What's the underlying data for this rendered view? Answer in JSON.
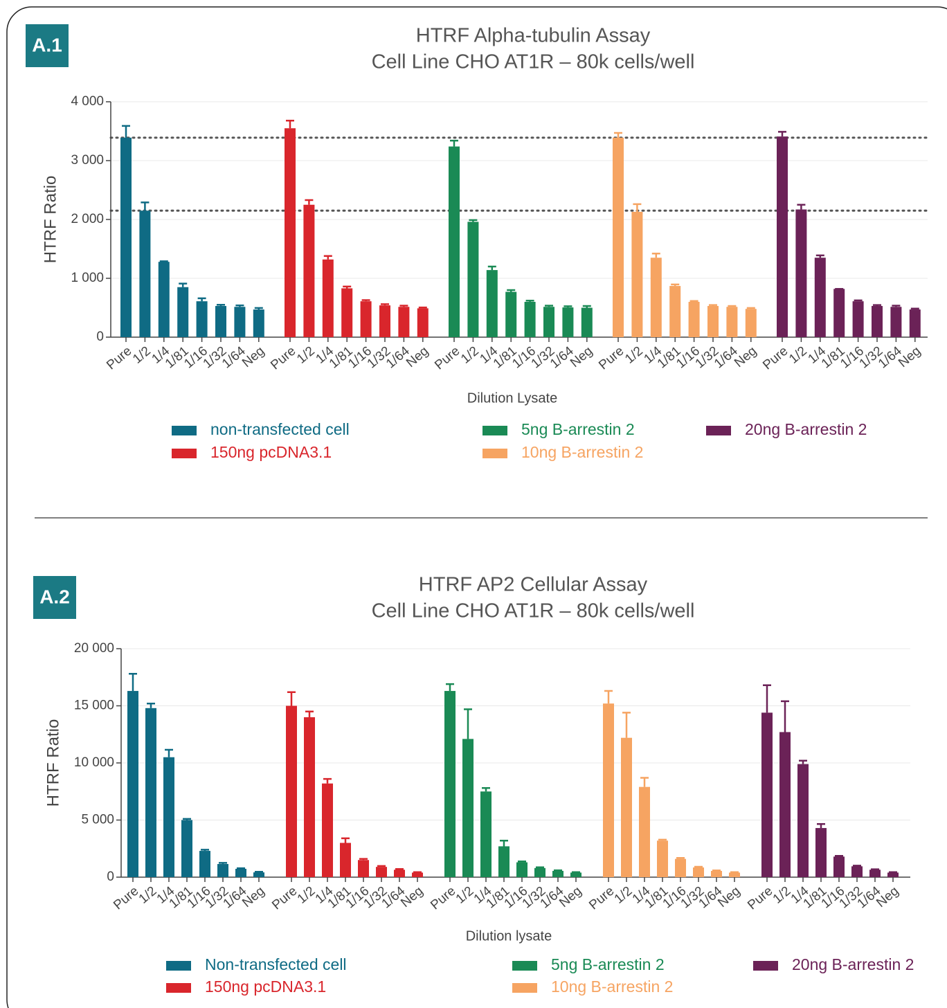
{
  "chart_data": [
    {
      "type": "bar",
      "panel": "A.1",
      "title": "HTRF Alpha-tubulin Assay",
      "subtitle": "Cell Line CHO AT1R – 80k cells/well",
      "ylabel": "HTRF Ratio",
      "xlabel": "Dilution Lysate",
      "categories": [
        "Pure",
        "1/2",
        "1/4",
        "1/81",
        "1/16",
        "1/32",
        "1/64",
        "Neg"
      ],
      "ylim": [
        0,
        4000
      ],
      "yticks": [
        0,
        {
          "value": 1000,
          "label": "1 000"
        },
        {
          "value": 2000,
          "label": "2 000"
        },
        {
          "value": 3000,
          "label": "3 000"
        },
        {
          "value": 4000,
          "label": "4 000"
        }
      ],
      "reference_lines": [
        3390,
        2150
      ],
      "series": [
        {
          "name": "non-transfected cell",
          "color": "#0f6b84",
          "values": [
            3390,
            2150,
            1280,
            850,
            610,
            530,
            515,
            470
          ],
          "errors": [
            200,
            140,
            10,
            60,
            50,
            20,
            25,
            25
          ]
        },
        {
          "name": "150ng pcDNA3.1",
          "color": "#d9262c",
          "values": [
            3550,
            2250,
            1320,
            830,
            610,
            540,
            515,
            490
          ],
          "errors": [
            130,
            80,
            60,
            30,
            20,
            20,
            20,
            15
          ]
        },
        {
          "name": "5ng B-arrestin 2",
          "color": "#1a8a55",
          "values": [
            3240,
            1960,
            1140,
            770,
            600,
            515,
            505,
            500
          ],
          "errors": [
            100,
            30,
            60,
            30,
            20,
            20,
            20,
            30
          ]
        },
        {
          "name": "10ng B-arrestin 2",
          "color": "#f6a462",
          "values": [
            3390,
            2130,
            1350,
            870,
            600,
            530,
            515,
            480
          ],
          "errors": [
            80,
            130,
            70,
            25,
            15,
            15,
            15,
            15
          ]
        },
        {
          "name": "20ng B-arrestin 2",
          "color": "#6b2257",
          "values": [
            3410,
            2170,
            1350,
            820,
            610,
            530,
            515,
            470
          ],
          "errors": [
            80,
            80,
            40,
            0,
            15,
            15,
            20,
            15
          ]
        }
      ]
    },
    {
      "type": "bar",
      "panel": "A.2",
      "title": "HTRF AP2 Cellular Assay",
      "subtitle": "Cell Line CHO AT1R – 80k cells/well",
      "ylabel": "HTRF Ratio",
      "xlabel": "Dilution lysate",
      "categories": [
        "Pure",
        "1/2",
        "1/4",
        "1/81",
        "1/16",
        "1/32",
        "1/64",
        "Neg"
      ],
      "ylim": [
        0,
        20000
      ],
      "yticks": [
        0,
        {
          "value": 5000,
          "label": "5 000"
        },
        {
          "value": 10000,
          "label": "10 000"
        },
        {
          "value": 15000,
          "label": "15 000"
        },
        {
          "value": 20000,
          "label": "20 000"
        }
      ],
      "series": [
        {
          "name": "Non-transfected cell",
          "color": "#0f6b84",
          "values": [
            16300,
            14800,
            10500,
            5000,
            2300,
            1150,
            730,
            420
          ],
          "errors": [
            1500,
            400,
            650,
            100,
            100,
            100,
            50,
            50
          ]
        },
        {
          "name": "150ng pcDNA3.1",
          "color": "#d9262c",
          "values": [
            15000,
            14000,
            8200,
            3000,
            1500,
            900,
            650,
            400
          ],
          "errors": [
            1200,
            500,
            400,
            400,
            100,
            80,
            60,
            40
          ]
        },
        {
          "name": "5ng B-arrestin 2",
          "color": "#1a8a55",
          "values": [
            16300,
            12100,
            7500,
            2700,
            1300,
            800,
            550,
            400
          ],
          "errors": [
            600,
            2600,
            300,
            500,
            80,
            60,
            50,
            40
          ]
        },
        {
          "name": "10ng B-arrestin 2",
          "color": "#f6a462",
          "values": [
            15200,
            12200,
            7900,
            3200,
            1600,
            850,
            550,
            400
          ],
          "errors": [
            1100,
            2200,
            800,
            80,
            80,
            60,
            40,
            40
          ]
        },
        {
          "name": "20ng B-arrestin 2",
          "color": "#6b2257",
          "values": [
            14400,
            12700,
            9900,
            4300,
            1800,
            950,
            650,
            400
          ],
          "errors": [
            2400,
            2700,
            300,
            350,
            60,
            60,
            40,
            40
          ]
        }
      ]
    }
  ]
}
